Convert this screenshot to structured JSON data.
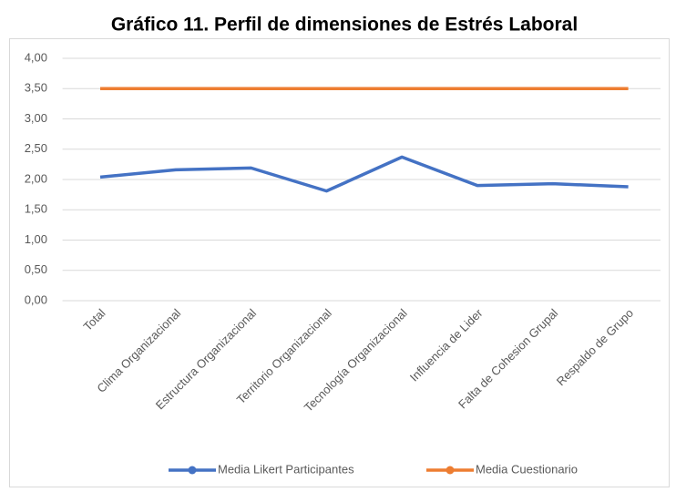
{
  "chart_data": {
    "type": "line",
    "title": "Gráfico 11. Perfil de dimensiones de Estrés Laboral",
    "categories": [
      "Total",
      "Clima Organizacional",
      "Estructura Organizacional",
      "Territorio Organizacional",
      "Tecnología Organizacional",
      "Influencia de Lider",
      "Falta de Cohesion Grupal",
      "Respaldo de Grupo"
    ],
    "series": [
      {
        "name": "Media Likert Participantes",
        "color": "#4472c4",
        "values": [
          2.04,
          2.16,
          2.19,
          1.81,
          2.37,
          1.9,
          1.93,
          1.88
        ]
      },
      {
        "name": "Media Cuestionario",
        "color": "#ed7d31",
        "values": [
          3.5,
          3.5,
          3.5,
          3.5,
          3.5,
          3.5,
          3.5,
          3.5
        ]
      }
    ],
    "ylim": [
      0,
      4
    ],
    "yticks": [
      {
        "value": 0,
        "label": "0,00"
      },
      {
        "value": 0.5,
        "label": "0,50"
      },
      {
        "value": 1,
        "label": "1,00"
      },
      {
        "value": 1.5,
        "label": "1,50"
      },
      {
        "value": 2,
        "label": "2,00"
      },
      {
        "value": 2.5,
        "label": "2,50"
      },
      {
        "value": 3,
        "label": "3,00"
      },
      {
        "value": 3.5,
        "label": "3,50"
      },
      {
        "value": 4,
        "label": "4,00"
      }
    ],
    "grid": true,
    "legend": "bottom"
  }
}
